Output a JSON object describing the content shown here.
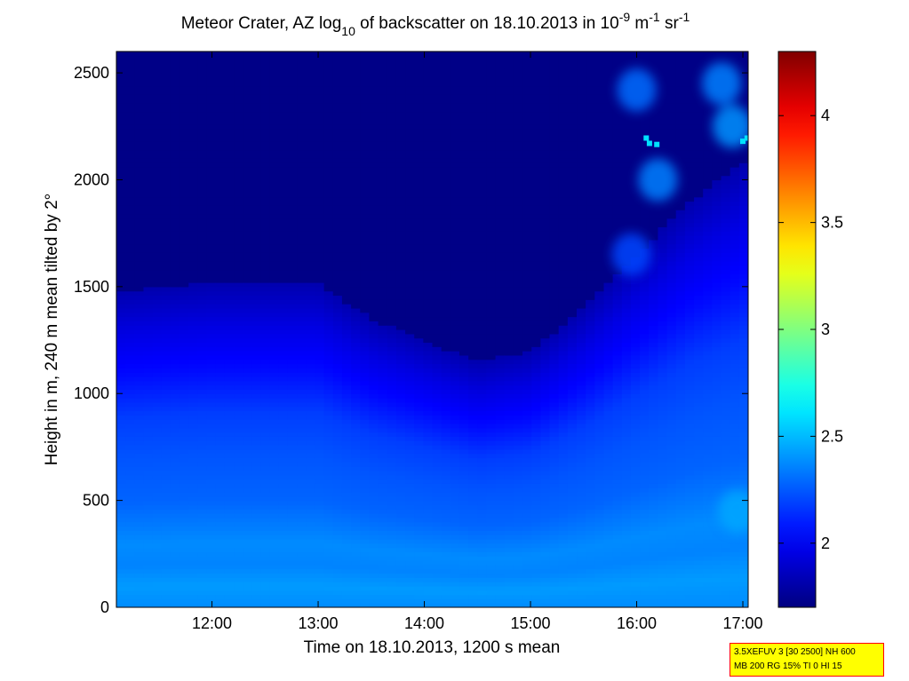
{
  "chart_data": {
    "type": "heatmap",
    "title": {
      "parts": [
        "Meteor Crater, AZ log",
        "10",
        " of backscatter on 18.10.2013 in 10",
        "-9",
        " m",
        "-1",
        " sr",
        "-1"
      ]
    },
    "xlabel": "Time on 18.10.2013, 1200 s mean",
    "ylabel": "Height in m, 240 m mean tilted by 2°",
    "xlim_hours": [
      11.1,
      17.05
    ],
    "xticks": [
      {
        "value": 12,
        "label": "12:00"
      },
      {
        "value": 13,
        "label": "13:00"
      },
      {
        "value": 14,
        "label": "14:00"
      },
      {
        "value": 15,
        "label": "15:00"
      },
      {
        "value": 16,
        "label": "16:00"
      },
      {
        "value": 17,
        "label": "17:00"
      }
    ],
    "ylim": [
      0,
      2600
    ],
    "yticks": [
      {
        "value": 0,
        "label": "0"
      },
      {
        "value": 500,
        "label": "500"
      },
      {
        "value": 1000,
        "label": "1000"
      },
      {
        "value": 1500,
        "label": "1500"
      },
      {
        "value": 2000,
        "label": "2000"
      },
      {
        "value": 2500,
        "label": "2500"
      }
    ],
    "colorbar": {
      "colormap": "jet",
      "clim": [
        1.7,
        4.3
      ],
      "ticks": [
        {
          "value": 2,
          "label": "2"
        },
        {
          "value": 2.5,
          "label": "2.5"
        },
        {
          "value": 3,
          "label": "3"
        },
        {
          "value": 3.5,
          "label": "3.5"
        },
        {
          "value": 4,
          "label": "4"
        }
      ]
    },
    "value_profile_by_height": [
      {
        "height": 0,
        "value": 2.38
      },
      {
        "height": 100,
        "value": 2.42
      },
      {
        "height": 200,
        "value": 2.36
      },
      {
        "height": 300,
        "value": 2.38
      },
      {
        "height": 500,
        "value": 2.28
      },
      {
        "height": 700,
        "value": 2.24
      },
      {
        "height": 900,
        "value": 2.18
      },
      {
        "height": 1100,
        "value": 2.05
      },
      {
        "height": 1300,
        "value": 1.95
      },
      {
        "height": 1500,
        "value": 1.82
      },
      {
        "height": 1800,
        "value": 1.72
      },
      {
        "height": 2600,
        "value": 1.72
      }
    ],
    "boundary_layer_top": [
      {
        "time": 11.1,
        "height": 1480
      },
      {
        "time": 12.0,
        "height": 1520
      },
      {
        "time": 13.0,
        "height": 1520
      },
      {
        "time": 13.5,
        "height": 1350
      },
      {
        "time": 14.0,
        "height": 1250
      },
      {
        "time": 14.5,
        "height": 1150
      },
      {
        "time": 15.0,
        "height": 1200
      },
      {
        "time": 15.5,
        "height": 1400
      },
      {
        "time": 16.0,
        "height": 1650
      },
      {
        "time": 16.5,
        "height": 1900
      },
      {
        "time": 17.05,
        "height": 2100
      }
    ],
    "features": [
      {
        "time": 16.2,
        "height": 2000,
        "value": 2.35,
        "name": "cloud-patch"
      },
      {
        "time": 16.0,
        "height": 2420,
        "value": 2.3,
        "name": "cloud-patch"
      },
      {
        "time": 16.8,
        "height": 2450,
        "value": 2.35,
        "name": "cloud-patch"
      },
      {
        "time": 16.9,
        "height": 2250,
        "value": 2.4,
        "name": "cloud-patch"
      },
      {
        "time": 15.95,
        "height": 1650,
        "value": 2.2,
        "name": "cloud-patch"
      },
      {
        "time": 16.95,
        "height": 450,
        "value": 2.45,
        "name": "high-value-region"
      }
    ],
    "points": [
      {
        "time": 16.09,
        "height": 2195,
        "value": 2.6
      },
      {
        "time": 16.12,
        "height": 2170,
        "value": 2.6
      },
      {
        "time": 16.19,
        "height": 2165,
        "value": 2.6
      },
      {
        "time": 17.0,
        "height": 2180,
        "value": 2.6
      },
      {
        "time": 17.04,
        "height": 2195,
        "value": 2.6
      }
    ]
  },
  "info_box": {
    "line1": "3.5XEFUV 3 [30 2500] NH 600",
    "line2": "MB 200 RG 15% TI 0 HI 15"
  }
}
